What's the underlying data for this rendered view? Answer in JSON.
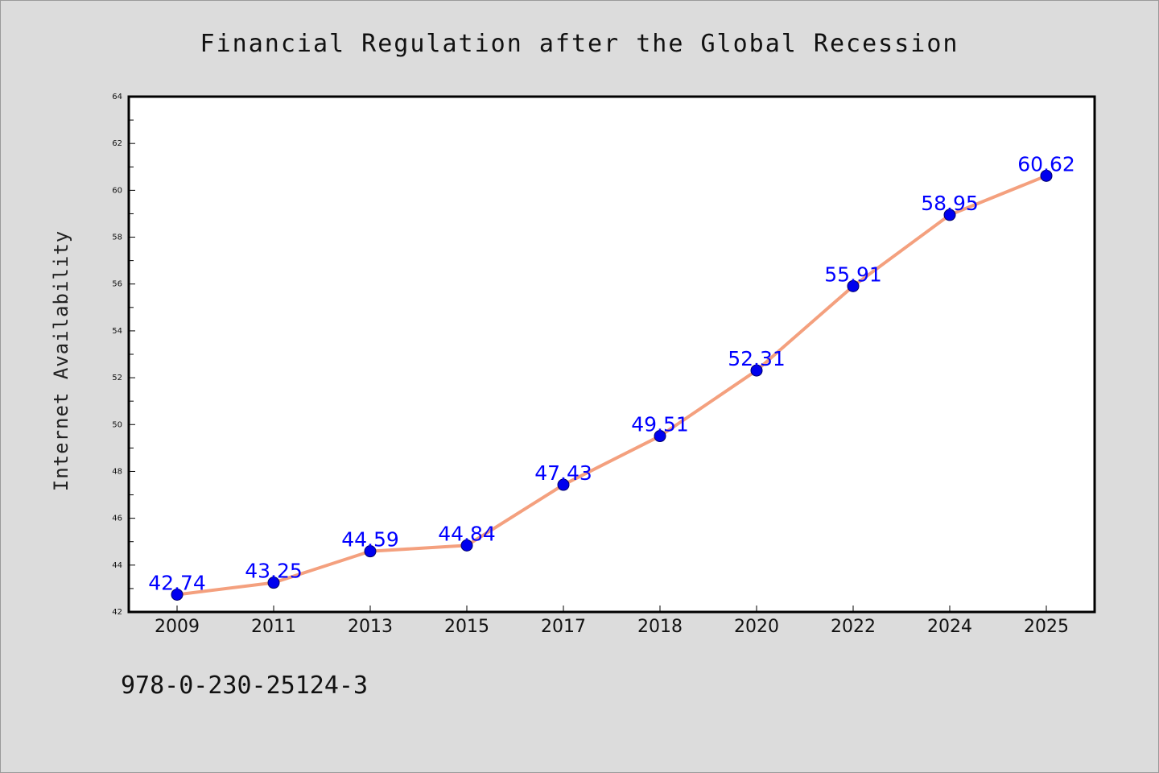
{
  "chart_data": {
    "type": "line",
    "title": "Financial Regulation after the Global Recession",
    "xlabel": "",
    "ylabel": "Internet Availability",
    "categories": [
      "2009",
      "2011",
      "2013",
      "2015",
      "2017",
      "2018",
      "2020",
      "2022",
      "2024",
      "2025"
    ],
    "series": [
      {
        "values": [
          42.74,
          43.25,
          44.59,
          44.84,
          47.43,
          49.51,
          52.31,
          55.91,
          58.95,
          60.62
        ]
      }
    ],
    "data_labels": [
      "42.74",
      "43.25",
      "44.59",
      "44.84",
      "47.43",
      "49.51",
      "52.31",
      "55.91",
      "58.95",
      "60.62"
    ],
    "ylim": [
      42,
      64
    ],
    "y_ticks": [
      42,
      44,
      46,
      48,
      50,
      52,
      54,
      56,
      58,
      60,
      62,
      64
    ],
    "y_minor_step": 1,
    "grid": false,
    "colors": {
      "line": "#f4a07e",
      "marker": "#0000ee",
      "data_label": "#0000ff",
      "plot_background": "#ffffff",
      "page_background": "#dcdcdc"
    }
  },
  "footer": {
    "text": "978-0-230-25124-3"
  }
}
